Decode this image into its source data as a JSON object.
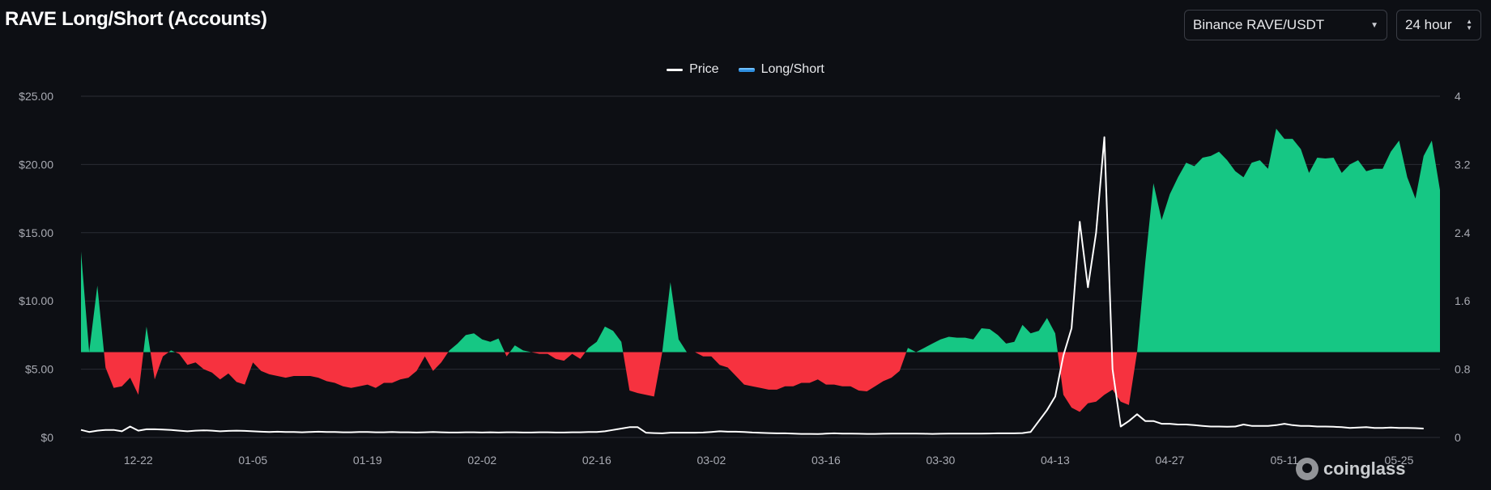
{
  "header": {
    "title": "RAVE Long/Short (Accounts)",
    "pair_select": {
      "value": "Binance RAVE/USDT",
      "icon": "chevron-down-icon"
    },
    "interval_select": {
      "value": "24 hour",
      "icon": "chevron-updown-icon"
    }
  },
  "legend": [
    {
      "label": "Price",
      "color": "#ffffff"
    },
    {
      "label": "Long/Short",
      "color": "#2f8fe0"
    }
  ],
  "watermark": {
    "text": "coinglass"
  },
  "colors": {
    "above": "#16c784",
    "below": "#f6323f",
    "price": "#ffffff",
    "grid": "#2a2d35",
    "background": "#0d0f14"
  },
  "chart_data": {
    "type": "line",
    "title": "RAVE Long/Short (Accounts)",
    "x_tick_labels": [
      "12-22",
      "01-05",
      "01-19",
      "02-02",
      "02-16",
      "03-02",
      "03-16",
      "03-30",
      "04-13",
      "04-27",
      "05-11",
      "05-25"
    ],
    "x_tick_indices": [
      7,
      21,
      35,
      49,
      63,
      77,
      91,
      105,
      119,
      133,
      147,
      161
    ],
    "y_left": {
      "label": "Price",
      "ticks": [
        "$0",
        "$5.00",
        "$10.00",
        "$15.00",
        "$20.00",
        "$25.00"
      ],
      "range": [
        0,
        25
      ]
    },
    "y_right": {
      "label": "Long/Short",
      "ticks": [
        "0",
        "0.8",
        "1.6",
        "2.4",
        "3.2",
        "4"
      ],
      "range": [
        0,
        4
      ],
      "baseline": 1.0
    },
    "series": [
      {
        "name": "Price",
        "axis": "left",
        "values": [
          0.55,
          0.4,
          0.5,
          0.55,
          0.55,
          0.45,
          0.8,
          0.5,
          0.6,
          0.6,
          0.58,
          0.55,
          0.5,
          0.45,
          0.5,
          0.52,
          0.5,
          0.45,
          0.48,
          0.5,
          0.48,
          0.45,
          0.42,
          0.4,
          0.42,
          0.4,
          0.4,
          0.38,
          0.4,
          0.42,
          0.4,
          0.4,
          0.38,
          0.38,
          0.4,
          0.4,
          0.38,
          0.38,
          0.4,
          0.38,
          0.38,
          0.36,
          0.38,
          0.4,
          0.38,
          0.36,
          0.36,
          0.38,
          0.38,
          0.36,
          0.38,
          0.36,
          0.38,
          0.38,
          0.36,
          0.36,
          0.38,
          0.38,
          0.36,
          0.36,
          0.38,
          0.38,
          0.4,
          0.4,
          0.45,
          0.55,
          0.65,
          0.75,
          0.75,
          0.35,
          0.32,
          0.3,
          0.35,
          0.35,
          0.35,
          0.35,
          0.36,
          0.4,
          0.45,
          0.42,
          0.42,
          0.4,
          0.36,
          0.34,
          0.32,
          0.3,
          0.3,
          0.28,
          0.26,
          0.26,
          0.25,
          0.28,
          0.3,
          0.28,
          0.28,
          0.27,
          0.26,
          0.26,
          0.27,
          0.28,
          0.28,
          0.28,
          0.28,
          0.27,
          0.26,
          0.27,
          0.28,
          0.28,
          0.28,
          0.28,
          0.28,
          0.29,
          0.3,
          0.3,
          0.3,
          0.32,
          0.4,
          1.2,
          2.0,
          3.0,
          6.0,
          8.0,
          15.8,
          11.0,
          15.0,
          22.0,
          5.0,
          0.8,
          1.2,
          1.7,
          1.2,
          1.2,
          1.0,
          1.0,
          0.95,
          0.95,
          0.9,
          0.85,
          0.8,
          0.8,
          0.78,
          0.8,
          0.95,
          0.85,
          0.85,
          0.85,
          0.9,
          1.0,
          0.9,
          0.85,
          0.85,
          0.8,
          0.8,
          0.78,
          0.75,
          0.7,
          0.72,
          0.75,
          0.7,
          0.7,
          0.72,
          0.7,
          0.7,
          0.68,
          0.65
        ]
      },
      {
        "name": "Long/Short",
        "axis": "right",
        "values": [
          2.18,
          1.0,
          1.78,
          0.82,
          0.58,
          0.6,
          0.7,
          0.5,
          1.3,
          0.68,
          0.95,
          1.02,
          0.98,
          0.85,
          0.88,
          0.8,
          0.76,
          0.68,
          0.75,
          0.65,
          0.62,
          0.88,
          0.78,
          0.74,
          0.72,
          0.7,
          0.72,
          0.72,
          0.72,
          0.7,
          0.66,
          0.64,
          0.6,
          0.58,
          0.6,
          0.62,
          0.58,
          0.64,
          0.64,
          0.68,
          0.7,
          0.78,
          0.95,
          0.78,
          0.88,
          1.02,
          1.1,
          1.2,
          1.22,
          1.15,
          1.12,
          1.16,
          0.95,
          1.08,
          1.02,
          1.0,
          0.98,
          0.98,
          0.92,
          0.9,
          0.98,
          0.92,
          1.05,
          1.12,
          1.3,
          1.25,
          1.12,
          0.55,
          0.52,
          0.5,
          0.48,
          1.0,
          1.82,
          1.15,
          1.0,
          1.0,
          0.95,
          0.95,
          0.85,
          0.82,
          0.72,
          0.62,
          0.6,
          0.58,
          0.56,
          0.56,
          0.6,
          0.6,
          0.64,
          0.64,
          0.68,
          0.62,
          0.62,
          0.6,
          0.6,
          0.55,
          0.54,
          0.6,
          0.66,
          0.7,
          0.78,
          1.05,
          1.0,
          1.05,
          1.1,
          1.15,
          1.18,
          1.17,
          1.17,
          1.15,
          1.28,
          1.27,
          1.2,
          1.1,
          1.12,
          1.32,
          1.22,
          1.25,
          1.4,
          1.22,
          0.5,
          0.35,
          0.3,
          0.4,
          0.42,
          0.5,
          0.56,
          0.42,
          0.38,
          1.0,
          2.05,
          2.98,
          2.55,
          2.85,
          3.05,
          3.22,
          3.18,
          3.28,
          3.3,
          3.35,
          3.25,
          3.12,
          3.05,
          3.22,
          3.25,
          3.15,
          3.62,
          3.5,
          3.5,
          3.38,
          3.1,
          3.28,
          3.27,
          3.28,
          3.1,
          3.2,
          3.25,
          3.12,
          3.15,
          3.15,
          3.35,
          3.48,
          3.05,
          2.8,
          3.3,
          3.48,
          2.9
        ]
      }
    ],
    "grid": true,
    "legend_position": "top-center"
  }
}
